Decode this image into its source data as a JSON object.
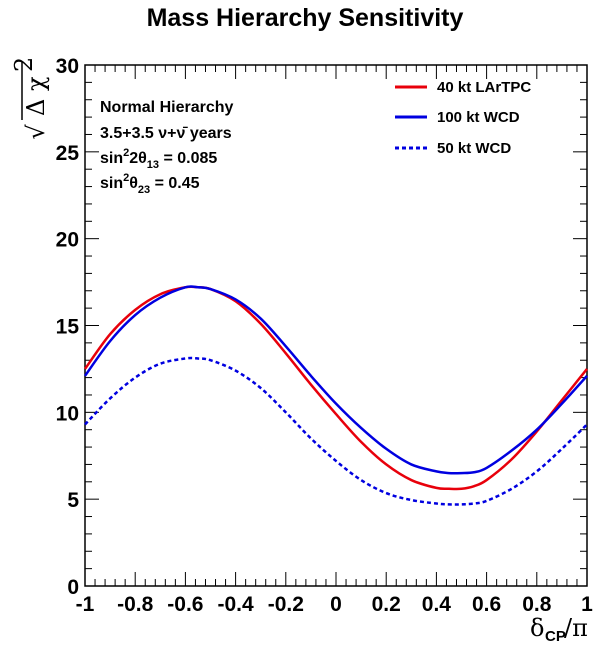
{
  "chart_data": {
    "type": "line",
    "title": "Mass Hierarchy Sensitivity",
    "xlabel": {
      "main": "δ",
      "sub": "CP",
      "suffix": "/π"
    },
    "ylabel": {
      "root": "√",
      "symbol": "Δ χ",
      "power": "2"
    },
    "xlim": [
      -1,
      1
    ],
    "ylim": [
      0,
      30
    ],
    "xticks": [
      -1,
      -0.8,
      -0.6,
      -0.4,
      -0.2,
      0,
      0.2,
      0.4,
      0.6,
      0.8,
      1
    ],
    "xtick_labels": [
      "-1",
      "-0.8",
      "-0.6",
      "-0.4",
      "-0.2",
      "0",
      "0.2",
      "0.4",
      "0.6",
      "0.8",
      "1"
    ],
    "yticks": [
      0,
      5,
      10,
      15,
      20,
      25,
      30
    ],
    "ytick_labels": [
      "0",
      "5",
      "10",
      "15",
      "20",
      "25",
      "30"
    ],
    "legend_position": "top-right",
    "annotations": {
      "line1": "Normal Hierarchy",
      "line2": "3.5+3.5 ν+ν̄ years",
      "line3_pre": "sin",
      "line3_sup": "2",
      "line3_mid": "2θ",
      "line3_sub": "13",
      "line3_post": " = 0.085",
      "line4_pre": "sin",
      "line4_sup": "2",
      "line4_mid": "θ",
      "line4_sub": "23",
      "line4_post": " = 0.45"
    },
    "x": [
      -1,
      -0.9,
      -0.8,
      -0.7,
      -0.6,
      -0.55,
      -0.5,
      -0.4,
      -0.3,
      -0.2,
      -0.1,
      0,
      0.1,
      0.2,
      0.3,
      0.4,
      0.45,
      0.5,
      0.55,
      0.6,
      0.7,
      0.8,
      0.9,
      1
    ],
    "series": [
      {
        "name": "40 kt LArTPC",
        "color": "#e8000b",
        "style": "solid",
        "values": [
          12.5,
          14.5,
          15.9,
          16.8,
          17.2,
          17.2,
          17.1,
          16.4,
          15.1,
          13.4,
          11.6,
          9.9,
          8.3,
          7.0,
          6.1,
          5.65,
          5.6,
          5.6,
          5.75,
          6.1,
          7.3,
          8.9,
          10.7,
          12.5
        ]
      },
      {
        "name": "100 kt WCD",
        "color": "#0000e0",
        "style": "solid",
        "values": [
          12.1,
          14.1,
          15.6,
          16.6,
          17.2,
          17.2,
          17.1,
          16.5,
          15.4,
          13.8,
          12.1,
          10.5,
          9.1,
          7.9,
          7.0,
          6.6,
          6.5,
          6.5,
          6.55,
          6.8,
          7.8,
          9.0,
          10.5,
          12.1
        ]
      },
      {
        "name": "50 kt WCD",
        "color": "#0000e0",
        "style": "dotted",
        "values": [
          9.3,
          10.8,
          12.0,
          12.8,
          13.1,
          13.1,
          13.0,
          12.4,
          11.4,
          10.0,
          8.5,
          7.2,
          6.1,
          5.35,
          4.95,
          4.75,
          4.7,
          4.7,
          4.75,
          4.9,
          5.6,
          6.6,
          7.9,
          9.3
        ]
      }
    ]
  }
}
